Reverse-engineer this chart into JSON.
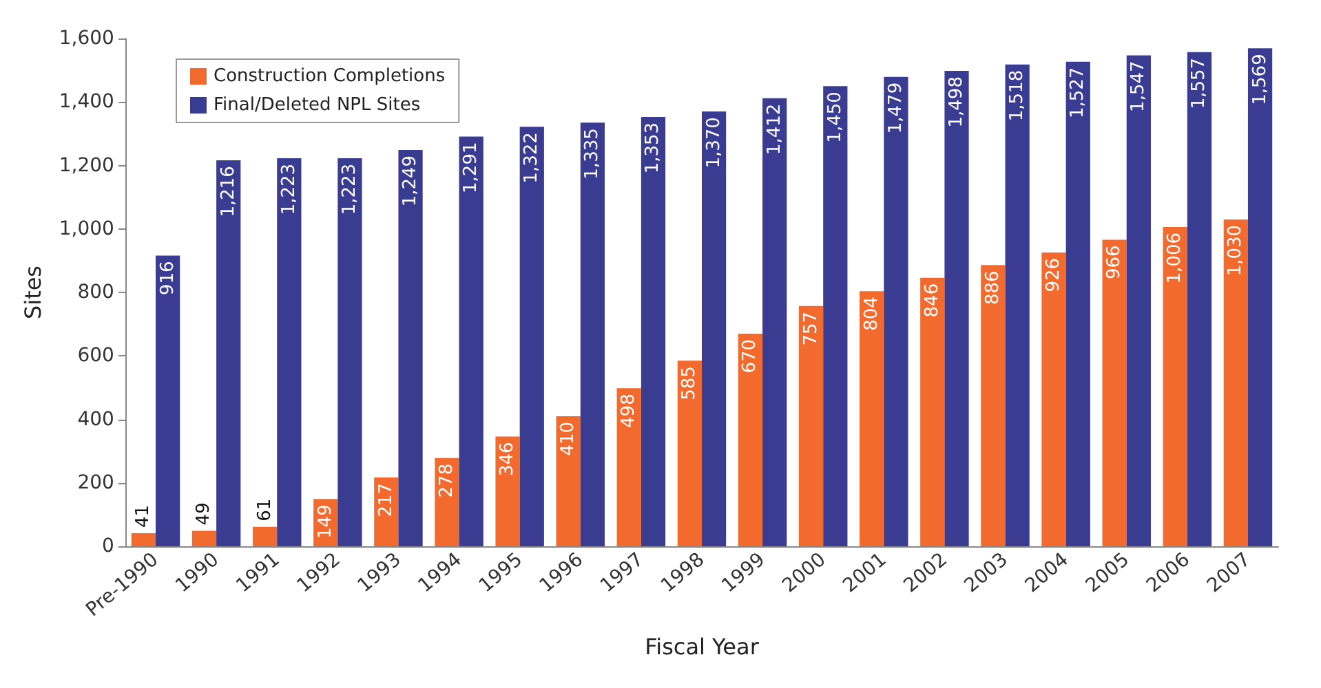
{
  "chart_data": {
    "type": "bar",
    "xlabel": "Fiscal Year",
    "ylabel": "Sites",
    "categories": [
      "Pre-1990",
      "1990",
      "1991",
      "1992",
      "1993",
      "1994",
      "1995",
      "1996",
      "1997",
      "1998",
      "1999",
      "2000",
      "2001",
      "2002",
      "2003",
      "2004",
      "2005",
      "2006",
      "2007"
    ],
    "series": [
      {
        "name": "Construction Completions",
        "color": "#f26a2e",
        "values": [
          41,
          49,
          61,
          149,
          217,
          278,
          346,
          410,
          498,
          585,
          670,
          757,
          804,
          846,
          886,
          926,
          966,
          1006,
          1030
        ],
        "value_labels": [
          "41",
          "49",
          "61",
          "149",
          "217",
          "278",
          "346",
          "410",
          "498",
          "585",
          "670",
          "757",
          "804",
          "846",
          "886",
          "926",
          "966",
          "1,006",
          "1,030"
        ]
      },
      {
        "name": "Final/Deleted NPL Sites",
        "color": "#3a3c92",
        "values": [
          916,
          1216,
          1223,
          1223,
          1249,
          1291,
          1322,
          1335,
          1353,
          1370,
          1412,
          1450,
          1479,
          1498,
          1518,
          1527,
          1547,
          1557,
          1569
        ],
        "value_labels": [
          "916",
          "1,216",
          "1,223",
          "1,223",
          "1,249",
          "1,291",
          "1,322",
          "1,335",
          "1,353",
          "1,370",
          "1,412",
          "1,450",
          "1,479",
          "1,498",
          "1,518",
          "1,527",
          "1,547",
          "1,557",
          "1,569"
        ]
      }
    ],
    "ylim": [
      0,
      1600
    ],
    "yticks": [
      0,
      200,
      400,
      600,
      800,
      {
        "value": 1000,
        "label": "1,000"
      },
      {
        "value": 1200,
        "label": "1,200"
      },
      {
        "value": 1400,
        "label": "1,400"
      },
      {
        "value": 1600,
        "label": "1,600"
      }
    ],
    "grid": false,
    "legend": "top left"
  }
}
